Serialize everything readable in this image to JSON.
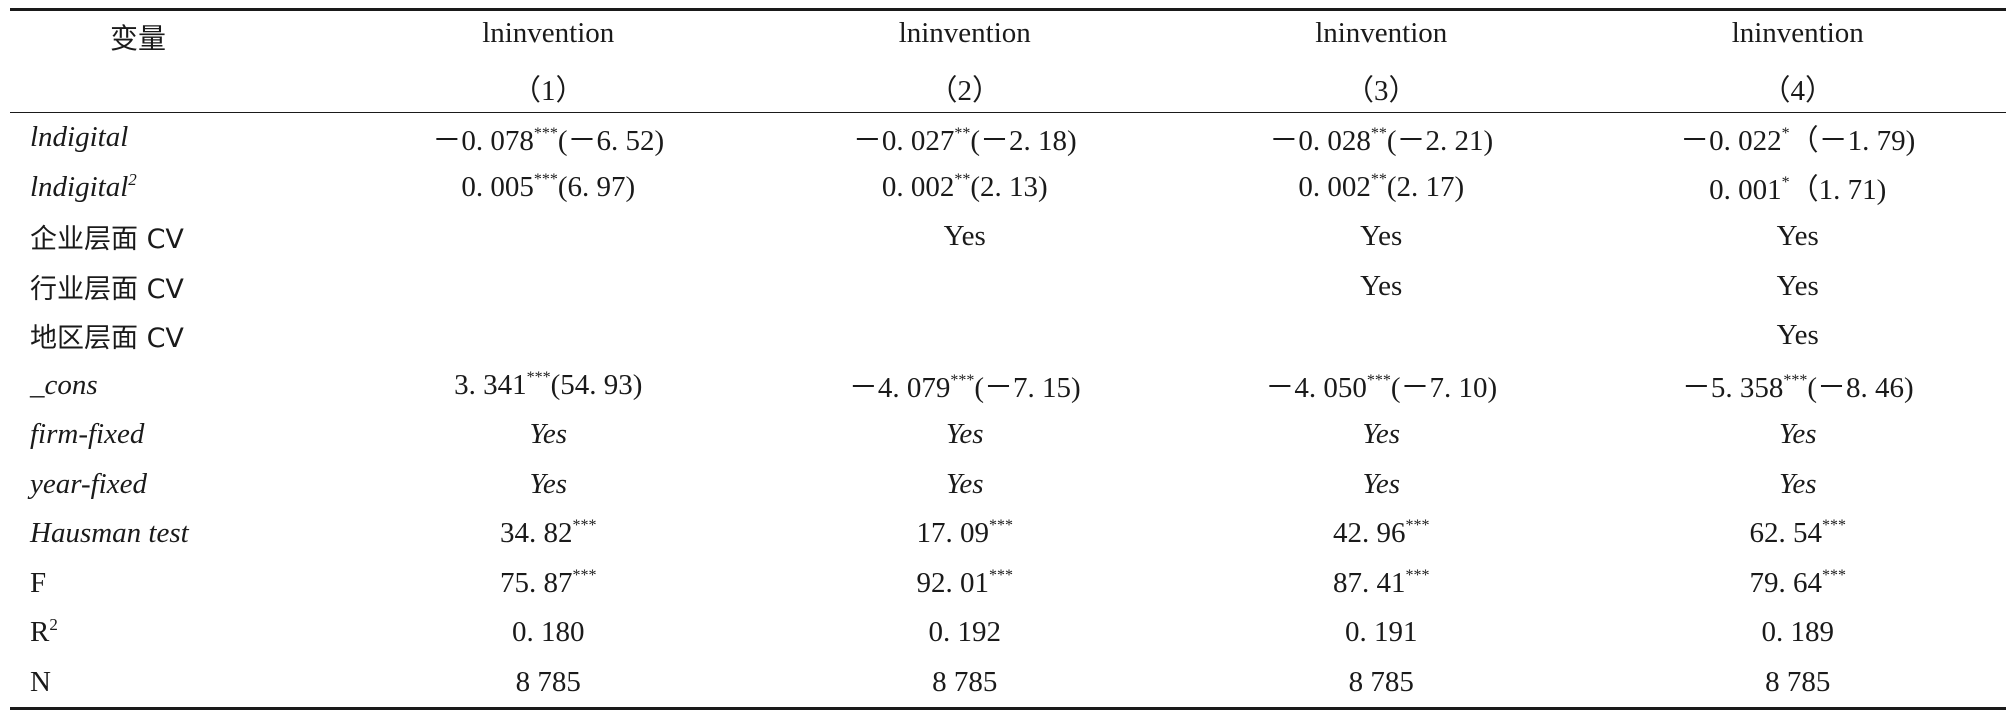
{
  "header": {
    "variable_label": "变量",
    "columns": [
      {
        "title": "lninvention",
        "number": "（1）"
      },
      {
        "title": "lninvention",
        "number": "（2）"
      },
      {
        "title": "lninvention",
        "number": "（3）"
      },
      {
        "title": "lninvention",
        "number": "（4）"
      }
    ]
  },
  "rows": [
    {
      "label": "lndigital",
      "label_sup": "",
      "cells": [
        {
          "v": "－0. 078",
          "s": "***",
          "t": "(－6. 52)"
        },
        {
          "v": "－0. 027",
          "s": "**",
          "t": "(－2. 18)"
        },
        {
          "v": "－0. 028",
          "s": "**",
          "t": "(－2. 21)"
        },
        {
          "v": "－0. 022",
          "s": "*",
          "t": "（－1. 79)"
        }
      ]
    },
    {
      "label": "lndigital",
      "label_sup": "2",
      "cells": [
        {
          "v": "0. 005",
          "s": "***",
          "t": "(6. 97)"
        },
        {
          "v": "0. 002",
          "s": "**",
          "t": "(2. 13)"
        },
        {
          "v": "0. 002",
          "s": "**",
          "t": "(2. 17)"
        },
        {
          "v": "0. 001",
          "s": "*",
          "t": "（1. 71)"
        }
      ]
    },
    {
      "label": "企业层面 CV",
      "label_sup": "",
      "cells": [
        {
          "v": "",
          "s": "",
          "t": ""
        },
        {
          "v": "Yes",
          "s": "",
          "t": ""
        },
        {
          "v": "Yes",
          "s": "",
          "t": ""
        },
        {
          "v": "Yes",
          "s": "",
          "t": ""
        }
      ]
    },
    {
      "label": "行业层面 CV",
      "label_sup": "",
      "cells": [
        {
          "v": "",
          "s": "",
          "t": ""
        },
        {
          "v": "",
          "s": "",
          "t": ""
        },
        {
          "v": "Yes",
          "s": "",
          "t": ""
        },
        {
          "v": "Yes",
          "s": "",
          "t": ""
        }
      ]
    },
    {
      "label": "地区层面 CV",
      "label_sup": "",
      "cells": [
        {
          "v": "",
          "s": "",
          "t": ""
        },
        {
          "v": "",
          "s": "",
          "t": ""
        },
        {
          "v": "",
          "s": "",
          "t": ""
        },
        {
          "v": "Yes",
          "s": "",
          "t": ""
        }
      ]
    },
    {
      "label": "_cons",
      "label_sup": "",
      "cells": [
        {
          "v": "3. 341",
          "s": "***",
          "t": "(54. 93)"
        },
        {
          "v": "－4. 079",
          "s": "***",
          "t": "(－7. 15)"
        },
        {
          "v": "－4. 050",
          "s": "***",
          "t": "(－7. 10)"
        },
        {
          "v": "－5. 358",
          "s": "***",
          "t": "(－8. 46)"
        }
      ]
    },
    {
      "label": "firm-fixed",
      "label_sup": "",
      "cells": [
        {
          "v": "Yes",
          "s": "",
          "t": ""
        },
        {
          "v": "Yes",
          "s": "",
          "t": ""
        },
        {
          "v": "Yes",
          "s": "",
          "t": ""
        },
        {
          "v": "Yes",
          "s": "",
          "t": ""
        }
      ]
    },
    {
      "label": "year-fixed",
      "label_sup": "",
      "cells": [
        {
          "v": "Yes",
          "s": "",
          "t": ""
        },
        {
          "v": "Yes",
          "s": "",
          "t": ""
        },
        {
          "v": "Yes",
          "s": "",
          "t": ""
        },
        {
          "v": "Yes",
          "s": "",
          "t": ""
        }
      ]
    },
    {
      "label": "Hausman test",
      "label_sup": "",
      "cells": [
        {
          "v": "34. 82",
          "s": "***",
          "t": ""
        },
        {
          "v": "17. 09",
          "s": "***",
          "t": ""
        },
        {
          "v": "42. 96",
          "s": "***",
          "t": ""
        },
        {
          "v": "62. 54",
          "s": "***",
          "t": ""
        }
      ]
    },
    {
      "label": "F",
      "label_sup": "",
      "cells": [
        {
          "v": "75. 87",
          "s": "***",
          "t": ""
        },
        {
          "v": "92. 01",
          "s": "***",
          "t": ""
        },
        {
          "v": "87. 41",
          "s": "***",
          "t": ""
        },
        {
          "v": "79. 64",
          "s": "***",
          "t": ""
        }
      ]
    },
    {
      "label": "R",
      "label_sup": "2",
      "cells": [
        {
          "v": "0. 180",
          "s": "",
          "t": ""
        },
        {
          "v": "0. 192",
          "s": "",
          "t": ""
        },
        {
          "v": "0. 191",
          "s": "",
          "t": ""
        },
        {
          "v": "0. 189",
          "s": "",
          "t": ""
        }
      ]
    },
    {
      "label": "N",
      "label_sup": "",
      "cells": [
        {
          "v": "8 785",
          "s": "",
          "t": ""
        },
        {
          "v": "8 785",
          "s": "",
          "t": ""
        },
        {
          "v": "8 785",
          "s": "",
          "t": ""
        },
        {
          "v": "8 785",
          "s": "",
          "t": ""
        }
      ]
    }
  ]
}
